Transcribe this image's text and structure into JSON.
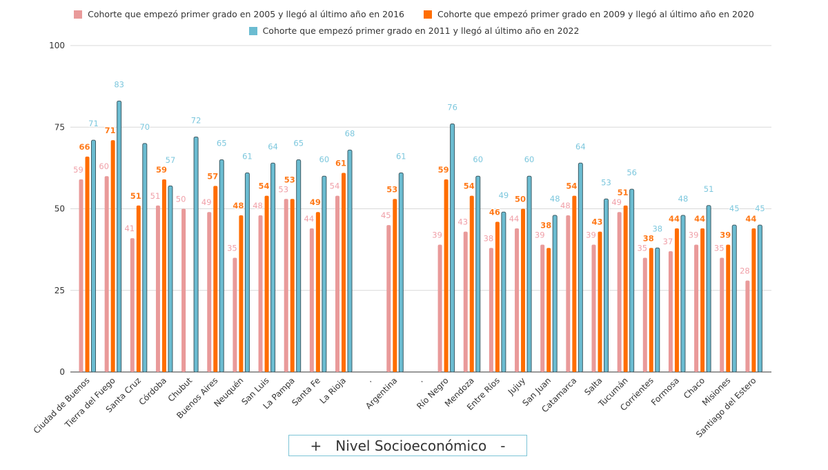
{
  "chart_data": {
    "type": "bar",
    "title": "",
    "xlabel": "",
    "ylabel": "",
    "ylim": [
      0,
      100
    ],
    "yticks": [
      0,
      25,
      50,
      75,
      100
    ],
    "grid": true,
    "legend_position": "top",
    "categories": [
      "Ciudad de Buenos",
      "Tierra del Fuego",
      "Santa Cruz",
      "Córdoba",
      "Chubut",
      "Buenos Aires",
      "Neuquén",
      "San Luis",
      "La Pampa",
      "Santa Fe",
      "La Rioja",
      ".",
      "Argentina",
      ".",
      "Río Negro",
      "Mendoza",
      "Entre Ríos",
      "Jujuy",
      "San Juan",
      "Catamarca",
      "Salta",
      "Tucumán",
      "Corrientes",
      "Formosa",
      "Chaco",
      "Misiones",
      "Santiago del Estero"
    ],
    "series": [
      {
        "name": "Cohorte que empezó primer grado en 2005 y llegó al último año en 2016",
        "color": "#e99a9a",
        "label_color": "#f0a0a8",
        "values": [
          59,
          60,
          41,
          51,
          50,
          49,
          35,
          48,
          53,
          44,
          54,
          null,
          45,
          null,
          39,
          43,
          38,
          44,
          39,
          48,
          39,
          49,
          35,
          37,
          39,
          35,
          28
        ]
      },
      {
        "name": "Cohorte que empezó primer grado en 2009 y llegó al último año en 2020",
        "color": "#ff6d00",
        "label_color": "#ff7a1a",
        "values": [
          66,
          71,
          51,
          59,
          null,
          57,
          48,
          54,
          53,
          49,
          61,
          null,
          53,
          null,
          59,
          54,
          46,
          50,
          38,
          54,
          43,
          51,
          38,
          44,
          44,
          39,
          44
        ]
      },
      {
        "name": "Cohorte que empezó primer grado en 2011 y llegó al último año en 2022",
        "color": "#6bbcd1",
        "label_color": "#7cc7dd",
        "values": [
          71,
          83,
          70,
          57,
          72,
          65,
          61,
          64,
          65,
          60,
          68,
          null,
          61,
          null,
          76,
          60,
          49,
          60,
          48,
          64,
          53,
          56,
          38,
          48,
          51,
          45,
          45
        ]
      }
    ]
  },
  "button": {
    "plus": "+",
    "label": "Nivel Socioeconómico",
    "minus": "-"
  }
}
